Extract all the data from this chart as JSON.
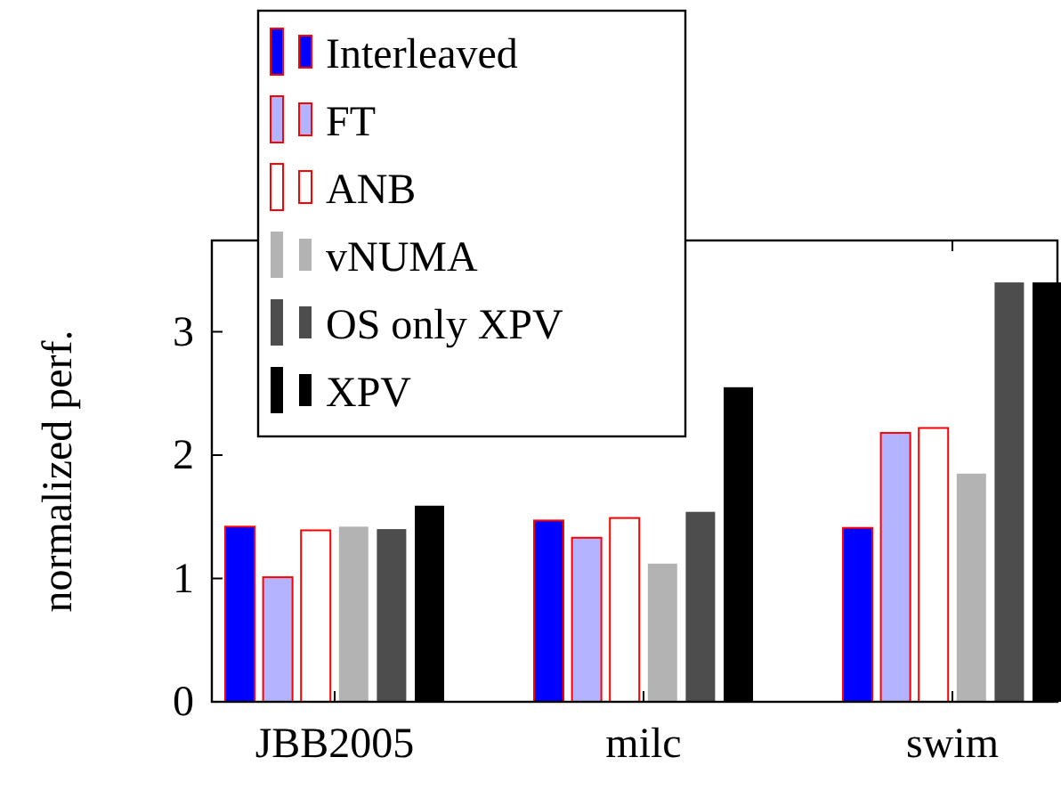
{
  "chart_data": {
    "type": "bar",
    "ylabel": "normalized perf.",
    "categories": [
      "JBB2005",
      "milc",
      "swim"
    ],
    "series": [
      {
        "name": "Interleaved",
        "color": "#0000ff",
        "values": [
          1.42,
          1.47,
          1.41
        ]
      },
      {
        "name": "FT",
        "color": "#b3b3ff",
        "values": [
          1.01,
          1.33,
          2.18
        ]
      },
      {
        "name": "ANB",
        "color": "#ffffff",
        "values": [
          1.39,
          1.49,
          2.22
        ]
      },
      {
        "name": "vNUMA",
        "color": "#b3b3b3",
        "values": [
          1.42,
          1.12,
          1.85
        ]
      },
      {
        "name": "OS only XPV",
        "color": "#4d4d4d",
        "values": [
          1.4,
          1.54,
          3.4
        ]
      },
      {
        "name": "XPV",
        "color": "#000000",
        "values": [
          1.59,
          2.55,
          3.4
        ]
      }
    ],
    "ylim": [
      0,
      3.74
    ],
    "yticks": [
      0,
      1,
      2,
      3
    ],
    "legend": "top left",
    "grid": false
  }
}
